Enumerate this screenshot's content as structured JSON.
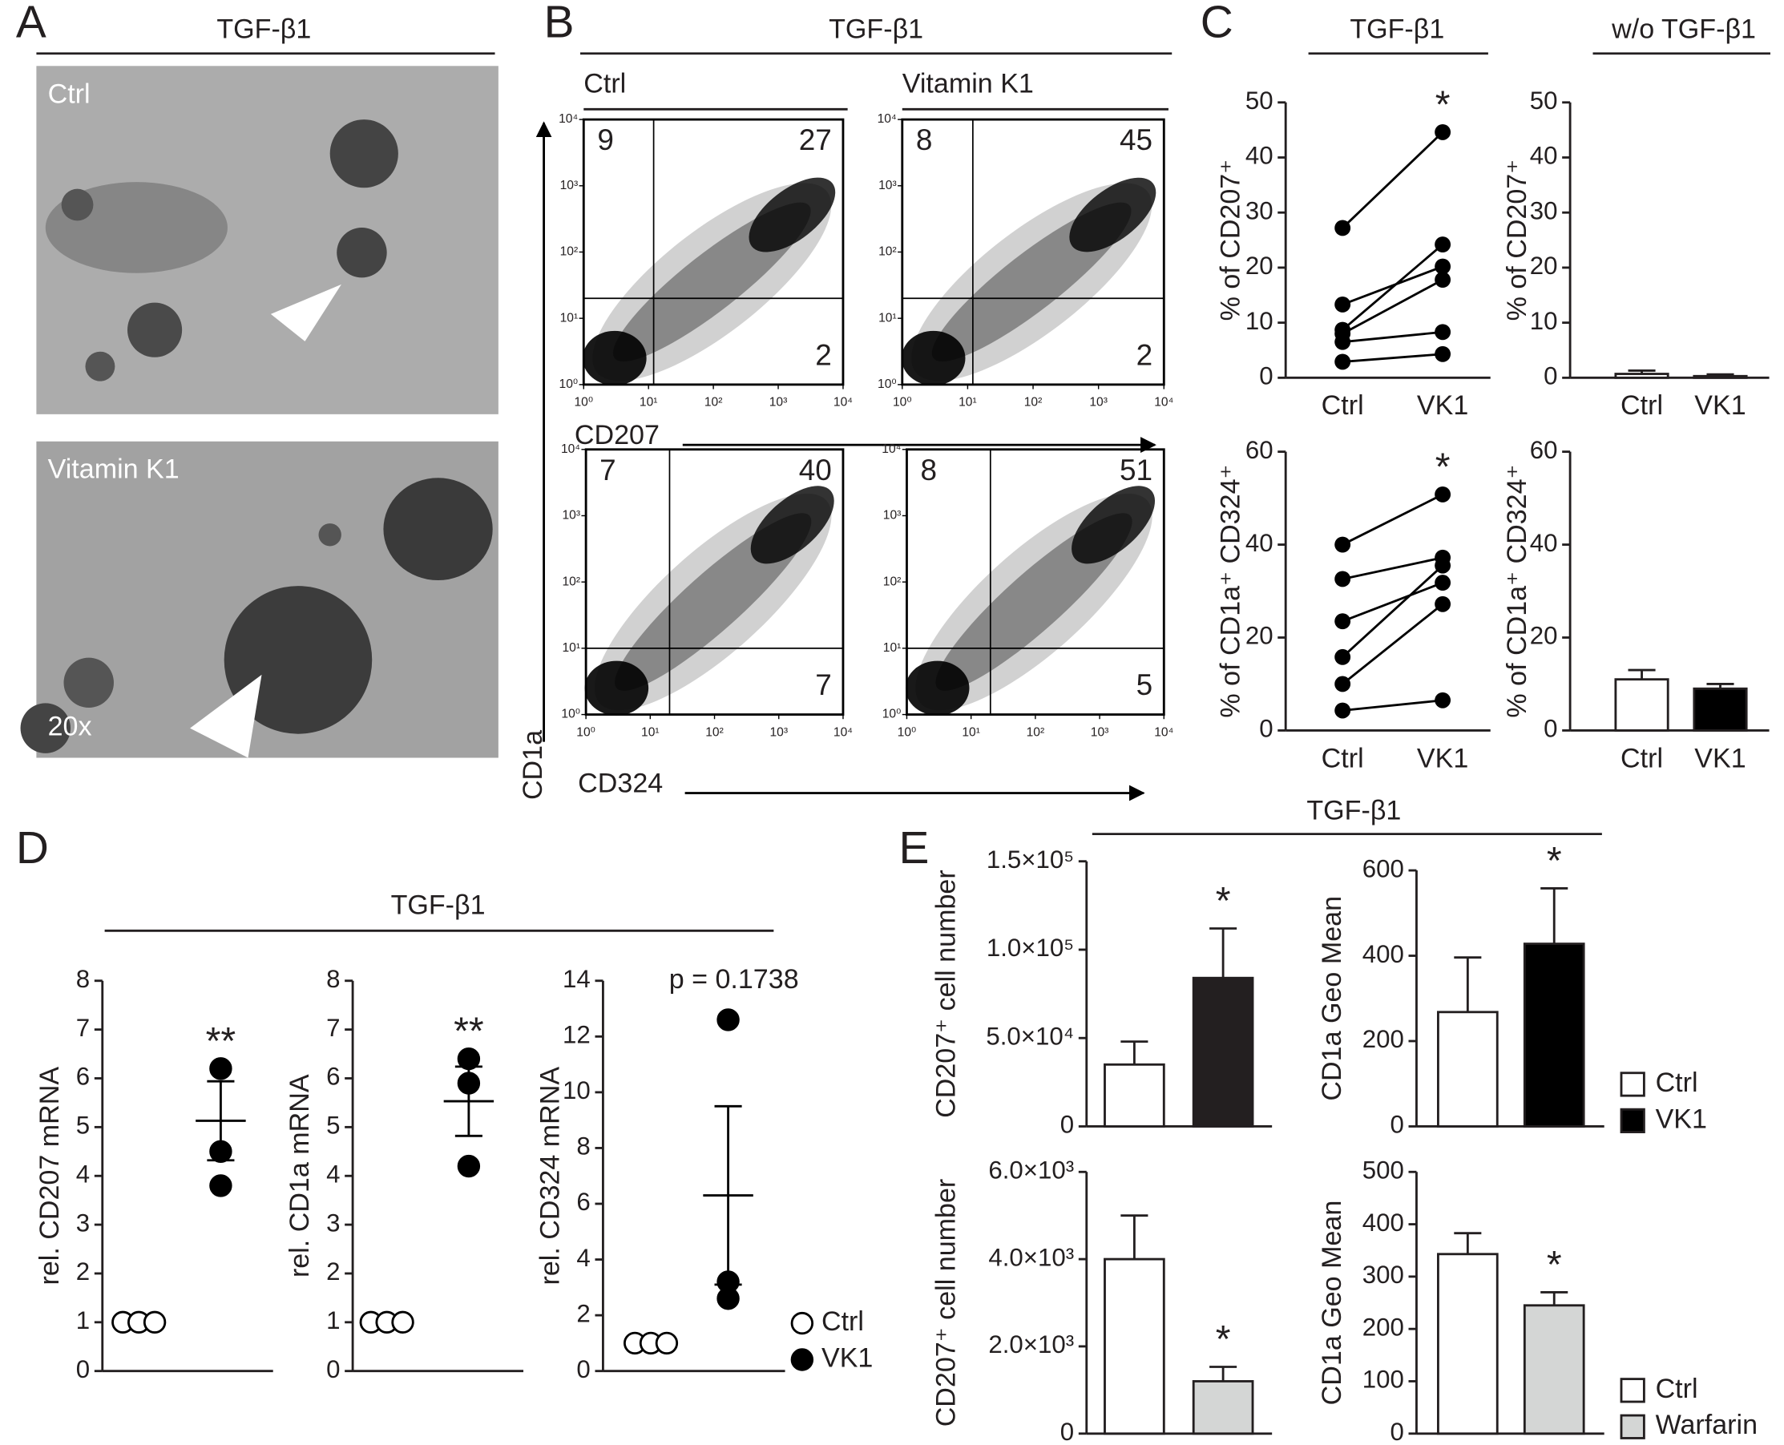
{
  "panel_labels": [
    "A",
    "B",
    "C",
    "D",
    "E"
  ],
  "panel_a": {
    "header": "TGF-β1",
    "images": [
      {
        "label": "Ctrl"
      },
      {
        "label": "Vitamin K1",
        "magnification": "20x"
      }
    ]
  },
  "panel_b": {
    "header": "TGF-β1",
    "x_labels": [
      "CD207",
      "CD324"
    ],
    "y_label": "CD1a"
  },
  "panel_c": {
    "headers": [
      "TGF-β1",
      "w/o TGF-β1"
    ]
  },
  "panel_d": {
    "header": "TGF-β1"
  },
  "panel_e": {
    "header": "TGF-β1"
  },
  "chart_data": [
    {
      "type": "flow",
      "title": "Ctrl",
      "xscale": "log",
      "yscale": "log",
      "xlim": [
        1,
        10000
      ],
      "ylim": [
        1,
        10000
      ],
      "xticks": [
        {
          "value": 1,
          "label": "10⁰"
        },
        {
          "value": 10,
          "label": "10¹"
        },
        {
          "value": 100,
          "label": "10²"
        },
        {
          "value": 1000,
          "label": "10³"
        },
        {
          "value": 10000,
          "label": "10⁴"
        }
      ],
      "yticks": [
        {
          "value": 1,
          "label": "10⁰"
        },
        {
          "value": 10,
          "label": "10¹"
        },
        {
          "value": 100,
          "label": "10²"
        },
        {
          "value": 1000,
          "label": "10³"
        },
        {
          "value": 10000,
          "label": "10⁴"
        }
      ],
      "x_gate": 12,
      "y_gate": 20,
      "quadrants": {
        "upper_left": 9,
        "upper_right": 27,
        "lower_right": 2
      }
    },
    {
      "type": "flow",
      "title": "Vitamin K1",
      "xscale": "log",
      "yscale": "log",
      "xlim": [
        1,
        10000
      ],
      "ylim": [
        1,
        10000
      ],
      "xticks": [
        {
          "value": 1,
          "label": "10⁰"
        },
        {
          "value": 10,
          "label": "10¹"
        },
        {
          "value": 100,
          "label": "10²"
        },
        {
          "value": 1000,
          "label": "10³"
        },
        {
          "value": 10000,
          "label": "10⁴"
        }
      ],
      "yticks": [
        {
          "value": 1,
          "label": "10⁰"
        },
        {
          "value": 10,
          "label": "10¹"
        },
        {
          "value": 100,
          "label": "10²"
        },
        {
          "value": 1000,
          "label": "10³"
        },
        {
          "value": 10000,
          "label": "10⁴"
        }
      ],
      "x_gate": 12,
      "y_gate": 20,
      "quadrants": {
        "upper_left": 8,
        "upper_right": 45,
        "lower_right": 2
      }
    },
    {
      "type": "flow",
      "xscale": "log",
      "yscale": "log",
      "xlim": [
        1,
        10000
      ],
      "ylim": [
        1,
        10000
      ],
      "xticks": [
        {
          "value": 1,
          "label": "10⁰"
        },
        {
          "value": 10,
          "label": "10¹"
        },
        {
          "value": 100,
          "label": "10²"
        },
        {
          "value": 1000,
          "label": "10³"
        },
        {
          "value": 10000,
          "label": "10⁴"
        }
      ],
      "yticks": [
        {
          "value": 1,
          "label": "10⁰"
        },
        {
          "value": 10,
          "label": "10¹"
        },
        {
          "value": 100,
          "label": "10²"
        },
        {
          "value": 1000,
          "label": "10³"
        },
        {
          "value": 10000,
          "label": "10⁴"
        }
      ],
      "x_gate": 20,
      "y_gate": 10,
      "quadrants": {
        "upper_left": 7,
        "upper_right": 40,
        "lower_right": 7
      }
    },
    {
      "type": "flow",
      "xscale": "log",
      "yscale": "log",
      "xlim": [
        1,
        10000
      ],
      "ylim": [
        1,
        10000
      ],
      "xticks": [
        {
          "value": 1,
          "label": "10⁰"
        },
        {
          "value": 10,
          "label": "10¹"
        },
        {
          "value": 100,
          "label": "10²"
        },
        {
          "value": 1000,
          "label": "10³"
        },
        {
          "value": 10000,
          "label": "10⁴"
        }
      ],
      "yticks": [
        {
          "value": 1,
          "label": "10⁰"
        },
        {
          "value": 10,
          "label": "10¹"
        },
        {
          "value": 100,
          "label": "10²"
        },
        {
          "value": 1000,
          "label": "10³"
        },
        {
          "value": 10000,
          "label": "10⁴"
        }
      ],
      "x_gate": 20,
      "y_gate": 10,
      "quadrants": {
        "upper_left": 8,
        "upper_right": 51,
        "lower_right": 5
      }
    },
    {
      "type": "paired",
      "y_label": "% of CD207⁺",
      "categories": [
        "Ctrl",
        "VK1"
      ],
      "ylim": [
        0,
        50
      ],
      "yticks": [
        0,
        10,
        20,
        30,
        40,
        50
      ],
      "annotation": "*",
      "series": [
        {
          "color": "#000",
          "values": [
            27.2,
            44.6
          ]
        },
        {
          "color": "#000",
          "values": [
            13.3,
            20.2
          ]
        },
        {
          "color": "#000",
          "values": [
            8.7,
            24.2
          ]
        },
        {
          "color": "#000",
          "values": [
            8.0,
            17.8
          ]
        },
        {
          "color": "#000",
          "values": [
            6.5,
            8.3
          ]
        },
        {
          "color": "#000",
          "values": [
            2.9,
            4.3
          ]
        }
      ]
    },
    {
      "type": "bar",
      "y_label": "% of CD207⁺",
      "categories": [
        "Ctrl",
        "VK1"
      ],
      "values": [
        0.7,
        0.3
      ],
      "errors": [
        0.6,
        0.3
      ],
      "colors": [
        "#ffffff",
        "#000000"
      ],
      "ylim": [
        0,
        50
      ],
      "yticks": [
        0,
        10,
        20,
        30,
        40,
        50
      ]
    },
    {
      "type": "paired",
      "y_label": "% of CD1a⁺ CD324⁺",
      "categories": [
        "Ctrl",
        "VK1"
      ],
      "ylim": [
        0,
        60
      ],
      "yticks": [
        0,
        20,
        40,
        60
      ],
      "annotation": "*",
      "series": [
        {
          "color": "#000",
          "values": [
            40,
            50.8
          ]
        },
        {
          "color": "#000",
          "values": [
            32.6,
            37.2
          ]
        },
        {
          "color": "#000",
          "values": [
            23.5,
            31.8
          ]
        },
        {
          "color": "#000",
          "values": [
            15.8,
            35.5
          ]
        },
        {
          "color": "#000",
          "values": [
            10,
            27.2
          ]
        },
        {
          "color": "#000",
          "values": [
            4.3,
            6.5
          ]
        }
      ]
    },
    {
      "type": "bar",
      "y_label": "% of CD1a⁺ CD324⁺",
      "categories": [
        "Ctrl",
        "VK1"
      ],
      "values": [
        11,
        9
      ],
      "errors": [
        2,
        1
      ],
      "colors": [
        "#ffffff",
        "#000000"
      ],
      "ylim": [
        0,
        60
      ],
      "yticks": [
        0,
        20,
        40,
        60
      ]
    },
    {
      "type": "dotplot",
      "y_label": "rel. CD207 mRNA",
      "ylim": [
        0,
        8
      ],
      "yticks": [
        0,
        1,
        2,
        3,
        4,
        5,
        6,
        7,
        8
      ],
      "annotation": "**",
      "series": [
        {
          "color": "#ffffff",
          "values": [
            1,
            1,
            1
          ]
        },
        {
          "color": "#000000",
          "values": [
            6.2,
            4.5,
            3.8
          ],
          "mean": 5.13,
          "error": 0.81
        }
      ]
    },
    {
      "type": "dotplot",
      "y_label": "rel. CD1a mRNA",
      "ylim": [
        0,
        8
      ],
      "yticks": [
        0,
        1,
        2,
        3,
        4,
        5,
        6,
        7,
        8
      ],
      "annotation": "**",
      "series": [
        {
          "color": "#ffffff",
          "values": [
            1,
            1,
            1
          ]
        },
        {
          "color": "#000000",
          "values": [
            6.4,
            5.9,
            4.2
          ],
          "mean": 5.53,
          "error": 0.71
        }
      ]
    },
    {
      "type": "dotplot",
      "y_label": "rel. CD324 mRNA",
      "ylim": [
        0,
        14
      ],
      "yticks": [
        0,
        2,
        4,
        6,
        8,
        10,
        12,
        14
      ],
      "annotation": "p = 0.1738",
      "series": [
        {
          "name": "Ctrl",
          "color": "#ffffff",
          "values": [
            1,
            1,
            1
          ]
        },
        {
          "name": "VK1",
          "color": "#000000",
          "values": [
            12.6,
            3.2,
            2.6
          ],
          "mean": 6.3,
          "error": 3.2
        }
      ]
    },
    {
      "type": "bar",
      "y_label": "CD207⁺ cell number",
      "ylim": [
        0,
        150000
      ],
      "annotation": "*",
      "yticks": [
        0,
        {
          "value": 50000,
          "label": "5.0×10⁴"
        },
        {
          "value": 100000,
          "label": "1.0×10⁵"
        },
        {
          "value": 150000,
          "label": "1.5×10⁵"
        }
      ],
      "series": [
        {
          "color": "#ffffff",
          "values": [
            35000
          ],
          "errors": [
            13000
          ]
        },
        {
          "color": "#231f20",
          "values": [
            84000
          ],
          "errors": [
            28000
          ]
        }
      ]
    },
    {
      "type": "bar",
      "y_label": "CD1a Geo Mean",
      "ylim": [
        0,
        600
      ],
      "yticks": [
        0,
        200,
        400,
        600
      ],
      "annotation": "*",
      "series": [
        {
          "name": "Ctrl",
          "color": "#ffffff",
          "values": [
            268
          ],
          "errors": [
            128
          ]
        },
        {
          "name": "VK1",
          "color": "#000000",
          "values": [
            428
          ],
          "errors": [
            130
          ]
        }
      ]
    },
    {
      "type": "bar",
      "y_label": "CD207⁺ cell number",
      "ylim": [
        0,
        6000
      ],
      "annotation": "*",
      "yticks": [
        0,
        {
          "value": 2000,
          "label": "2.0×10³"
        },
        {
          "value": 4000,
          "label": "4.0×10³"
        },
        {
          "value": 6000,
          "label": "6.0×10³"
        }
      ],
      "series": [
        {
          "color": "#ffffff",
          "values": [
            4000
          ],
          "errors": [
            1000
          ]
        },
        {
          "color": "#d4d6d5",
          "values": [
            1200
          ],
          "errors": [
            330
          ]
        }
      ]
    },
    {
      "type": "bar",
      "y_label": "CD1a Geo Mean",
      "ylim": [
        0,
        500
      ],
      "yticks": [
        0,
        100,
        200,
        300,
        400,
        500
      ],
      "annotation": "*",
      "series": [
        {
          "name": "Ctrl",
          "color": "#ffffff",
          "values": [
            343
          ],
          "errors": [
            40
          ]
        },
        {
          "name": "Warfarin",
          "color": "#d4d6d5",
          "values": [
            245
          ],
          "errors": [
            25
          ]
        }
      ]
    }
  ]
}
